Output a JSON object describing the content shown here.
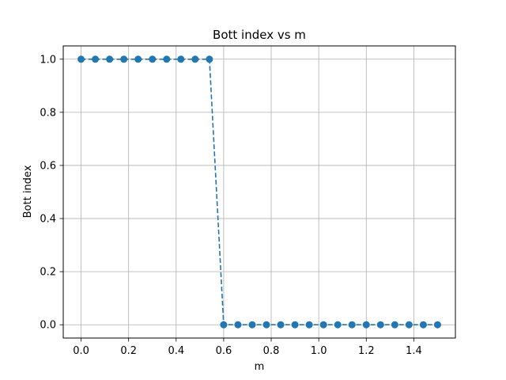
{
  "chart_data": {
    "type": "line",
    "title": "Bott index vs m",
    "xlabel": "m",
    "ylabel": "Bott index",
    "xlim": [
      -0.075,
      1.575
    ],
    "ylim": [
      -0.05,
      1.05
    ],
    "xticks": [
      0.0,
      0.2,
      0.4,
      0.6,
      0.8,
      1.0,
      1.2,
      1.4
    ],
    "xtick_labels": [
      "0.0",
      "0.2",
      "0.4",
      "0.6",
      "0.8",
      "1.0",
      "1.2",
      "1.4"
    ],
    "yticks": [
      0.0,
      0.2,
      0.4,
      0.6,
      0.8,
      1.0
    ],
    "ytick_labels": [
      "0.0",
      "0.2",
      "0.4",
      "0.6",
      "0.8",
      "1.0"
    ],
    "grid": true,
    "line_style": "dashed",
    "marker": "circle",
    "color": "#1f77b4",
    "series": [
      {
        "x": [
          0.0,
          0.06,
          0.12,
          0.18,
          0.24,
          0.3,
          0.36,
          0.42,
          0.48,
          0.54,
          0.6,
          0.66,
          0.72,
          0.78,
          0.84,
          0.9,
          0.96,
          1.02,
          1.08,
          1.14,
          1.2,
          1.26,
          1.32,
          1.38,
          1.44,
          1.5
        ],
        "values": [
          1,
          1,
          1,
          1,
          1,
          1,
          1,
          1,
          1,
          1,
          0,
          0,
          0,
          0,
          0,
          0,
          0,
          0,
          0,
          0,
          0,
          0,
          0,
          0,
          0,
          0
        ]
      }
    ]
  }
}
